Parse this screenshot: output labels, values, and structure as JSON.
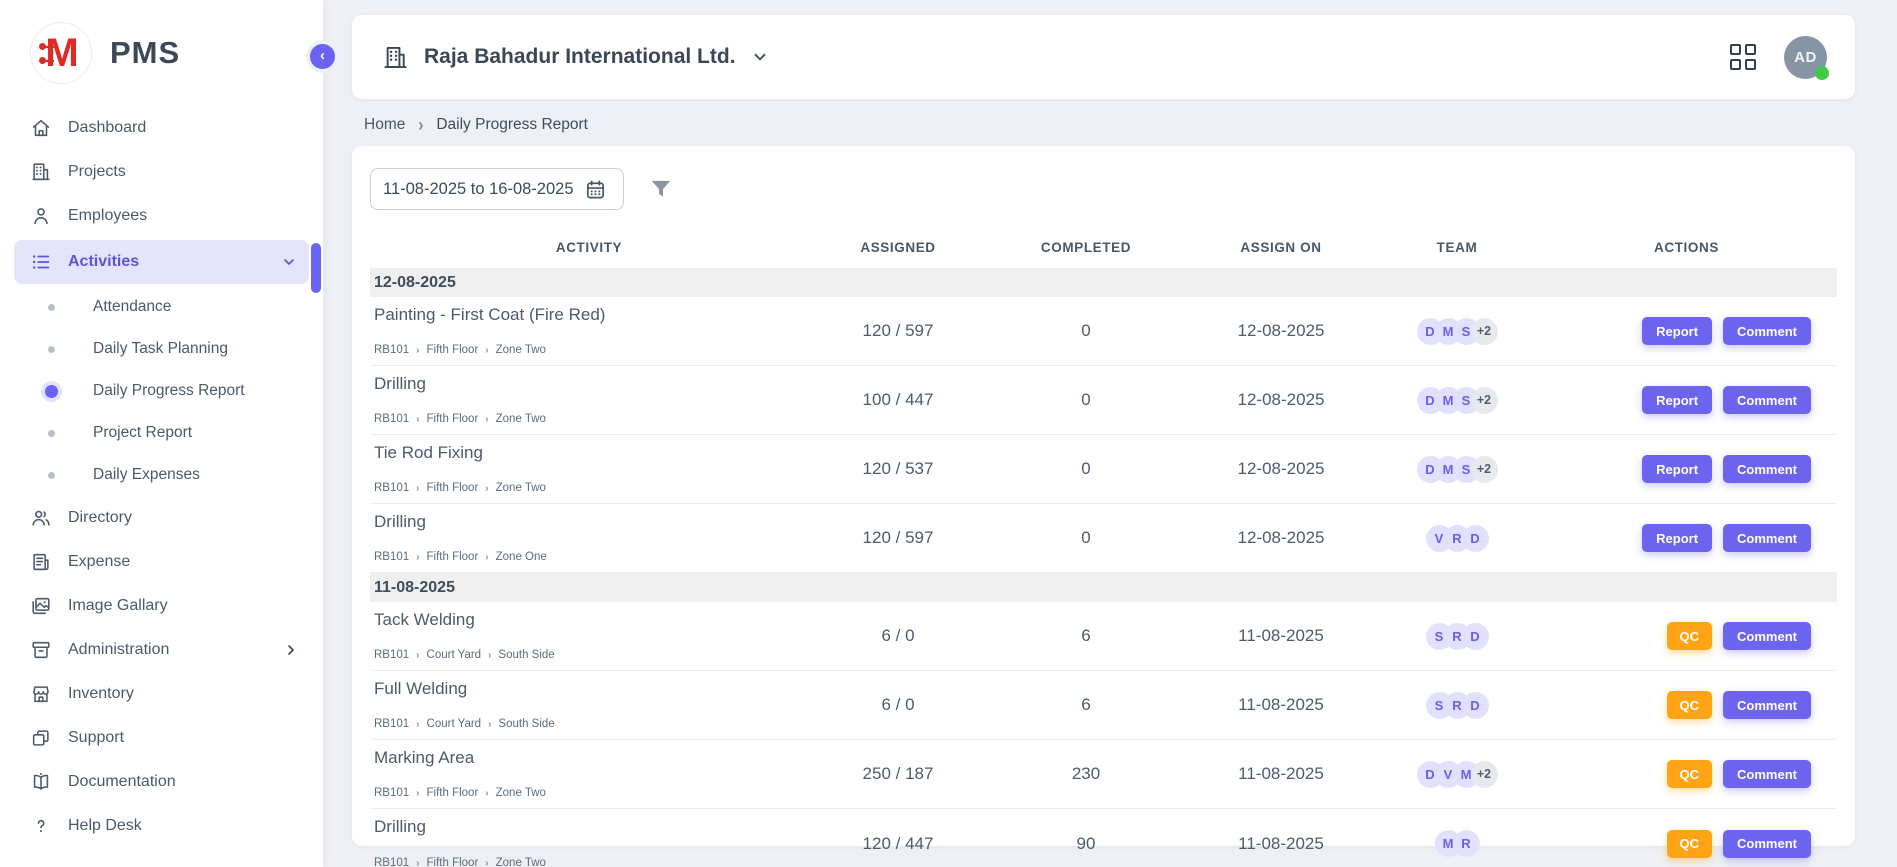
{
  "app": {
    "name": "PMS",
    "logo_letter": "M"
  },
  "colors": {
    "accent_purple": "#6c63ee",
    "accent_orange": "#ffa414",
    "active_bg": "#e6e3fc",
    "online_green": "#43c943",
    "brand_red": "#df2a26",
    "band_gray": "#efeff0"
  },
  "sidebar": {
    "items": [
      {
        "label": "Dashboard",
        "icon": "home"
      },
      {
        "label": "Projects",
        "icon": "building"
      },
      {
        "label": "Employees",
        "icon": "person"
      },
      {
        "label": "Activities",
        "icon": "list",
        "active": true,
        "expanded": true,
        "children": [
          {
            "label": "Attendance",
            "active": false
          },
          {
            "label": "Daily Task Planning",
            "active": false
          },
          {
            "label": "Daily Progress Report",
            "active": true
          },
          {
            "label": "Project Report",
            "active": false
          },
          {
            "label": "Daily Expenses",
            "active": false
          }
        ]
      },
      {
        "label": "Directory",
        "icon": "people"
      },
      {
        "label": "Expense",
        "icon": "receipt"
      },
      {
        "label": "Image Gallary",
        "icon": "image"
      },
      {
        "label": "Administration",
        "icon": "archive",
        "chevron": "right"
      },
      {
        "label": "Inventory",
        "icon": "store"
      },
      {
        "label": "Support",
        "icon": "squares"
      },
      {
        "label": "Documentation",
        "icon": "book"
      },
      {
        "label": "Help Desk",
        "icon": "question"
      }
    ]
  },
  "header": {
    "company": "Raja Bahadur International Ltd.",
    "avatar_initials": "AD",
    "status": "online"
  },
  "breadcrumb": {
    "home": "Home",
    "current": "Daily Progress Report"
  },
  "filters": {
    "date_range": "11-08-2025 to 16-08-2025"
  },
  "table": {
    "columns": [
      "ACTIVITY",
      "ASSIGNED",
      "COMPLETED",
      "ASSIGN ON",
      "TEAM",
      "ACTIONS"
    ],
    "comment_label": "Comment",
    "groups": [
      {
        "date": "12-08-2025",
        "rows": [
          {
            "activity": "Painting - First Coat (Fire Red)",
            "path": [
              "RB101",
              "Fifth Floor",
              "Zone Two"
            ],
            "assigned": "120 / 597",
            "completed": "0",
            "assign_on": "12-08-2025",
            "team": [
              "D",
              "M",
              "S"
            ],
            "team_extra": "+2",
            "primary_action": "Report",
            "primary_style": "purple"
          },
          {
            "activity": "Drilling",
            "path": [
              "RB101",
              "Fifth Floor",
              "Zone Two"
            ],
            "assigned": "100 / 447",
            "completed": "0",
            "assign_on": "12-08-2025",
            "team": [
              "D",
              "M",
              "S"
            ],
            "team_extra": "+2",
            "primary_action": "Report",
            "primary_style": "purple"
          },
          {
            "activity": "Tie Rod Fixing",
            "path": [
              "RB101",
              "Fifth Floor",
              "Zone Two"
            ],
            "assigned": "120 / 537",
            "completed": "0",
            "assign_on": "12-08-2025",
            "team": [
              "D",
              "M",
              "S"
            ],
            "team_extra": "+2",
            "primary_action": "Report",
            "primary_style": "purple"
          },
          {
            "activity": "Drilling",
            "path": [
              "RB101",
              "Fifth Floor",
              "Zone One"
            ],
            "assigned": "120 / 597",
            "completed": "0",
            "assign_on": "12-08-2025",
            "team": [
              "V",
              "R",
              "D"
            ],
            "team_extra": "",
            "primary_action": "Report",
            "primary_style": "purple"
          }
        ]
      },
      {
        "date": "11-08-2025",
        "rows": [
          {
            "activity": "Tack Welding",
            "path": [
              "RB101",
              "Court Yard",
              "South Side"
            ],
            "assigned": "6 / 0",
            "completed": "6",
            "assign_on": "11-08-2025",
            "team": [
              "S",
              "R",
              "D"
            ],
            "team_extra": "",
            "primary_action": "QC",
            "primary_style": "orange"
          },
          {
            "activity": "Full Welding",
            "path": [
              "RB101",
              "Court Yard",
              "South Side"
            ],
            "assigned": "6 / 0",
            "completed": "6",
            "assign_on": "11-08-2025",
            "team": [
              "S",
              "R",
              "D"
            ],
            "team_extra": "",
            "primary_action": "QC",
            "primary_style": "orange"
          },
          {
            "activity": "Marking Area",
            "path": [
              "RB101",
              "Fifth Floor",
              "Zone Two"
            ],
            "assigned": "250 / 187",
            "completed": "230",
            "assign_on": "11-08-2025",
            "team": [
              "D",
              "V",
              "M"
            ],
            "team_extra": "+2",
            "primary_action": "QC",
            "primary_style": "orange"
          },
          {
            "activity": "Drilling",
            "path": [
              "RB101",
              "Fifth Floor",
              "Zone Two"
            ],
            "assigned": "120 / 447",
            "completed": "90",
            "assign_on": "11-08-2025",
            "team": [
              "M",
              "R"
            ],
            "team_extra": "",
            "primary_action": "QC",
            "primary_style": "orange"
          }
        ]
      }
    ]
  }
}
